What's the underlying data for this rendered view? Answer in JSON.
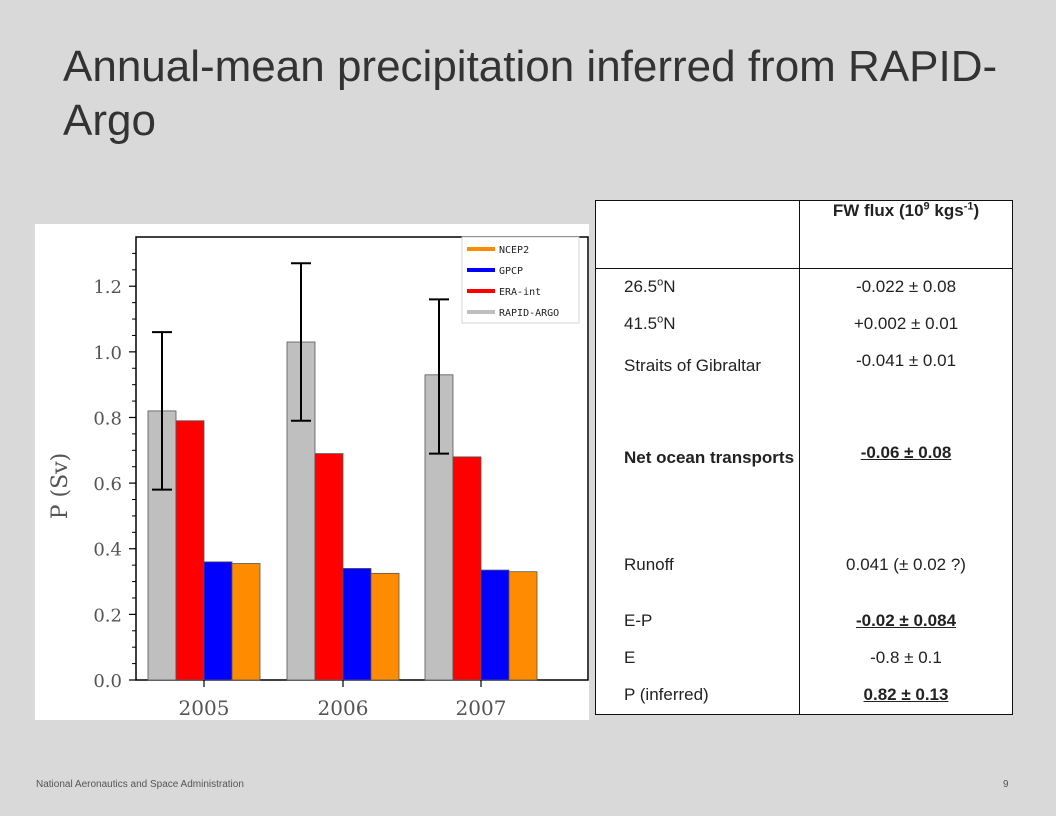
{
  "slide": {
    "title": "Annual-mean precipitation inferred from RAPID-Argo",
    "footer": "National Aeronautics and Space Administration",
    "page_number": "9"
  },
  "chart_data": {
    "type": "bar",
    "categories": [
      "2005",
      "2006",
      "2007"
    ],
    "ylabel": "P (Sv)",
    "xlabel": "",
    "ylim": [
      0,
      1.35
    ],
    "yticks": [
      "0.0",
      "0.2",
      "0.4",
      "0.6",
      "0.8",
      "1.0",
      "1.2"
    ],
    "ytick_values": [
      0.0,
      0.2,
      0.4,
      0.6,
      0.8,
      1.0,
      1.2
    ],
    "grid": false,
    "legend": {
      "placement": "top-right"
    },
    "series": [
      {
        "name": "RAPID-ARGO",
        "color": "#bfbfbf",
        "values": [
          0.82,
          1.03,
          0.93
        ],
        "error_low": [
          0.58,
          0.79,
          0.69
        ],
        "error_high": [
          1.06,
          1.27,
          1.16
        ]
      },
      {
        "name": "ERA-int",
        "color": "#ff0000",
        "values": [
          0.79,
          0.69,
          0.68
        ]
      },
      {
        "name": "GPCP",
        "color": "#0000ff",
        "values": [
          0.36,
          0.34,
          0.335
        ]
      },
      {
        "name": "NCEP2",
        "color": "#ff8c00",
        "values": [
          0.355,
          0.325,
          0.33
        ]
      }
    ],
    "legend_order": [
      "NCEP2",
      "GPCP",
      "ERA-int",
      "RAPID-ARGO"
    ]
  },
  "table": {
    "header": {
      "label": "",
      "value_pre": "FW flux (10",
      "value_sup1": "9",
      "value_mid": " kgs",
      "value_sup2": "-1",
      "value_post": ")"
    },
    "rows": [
      {
        "label_pre": "26.5",
        "label_sup": "o",
        "label_post": "N",
        "value": "-0.022 ± 0.08"
      },
      {
        "label_pre": "41.5",
        "label_sup": "o",
        "label_post": "N",
        "value": "+0.002 ± 0.01"
      },
      {
        "label": "Straits of Gibraltar",
        "value": "-0.041 ± 0.01"
      },
      {
        "label": "Net ocean transports",
        "value": "-0.06 ± 0.08"
      },
      {
        "label": "Runoff",
        "value": "0.041 (± 0.02 ?)"
      },
      {
        "label": "E-P",
        "value": "-0.02 ± 0.084"
      },
      {
        "label": "E",
        "value": "-0.8 ± 0.1"
      },
      {
        "label": "P (inferred)",
        "value": "0.82 ± 0.13"
      }
    ]
  }
}
